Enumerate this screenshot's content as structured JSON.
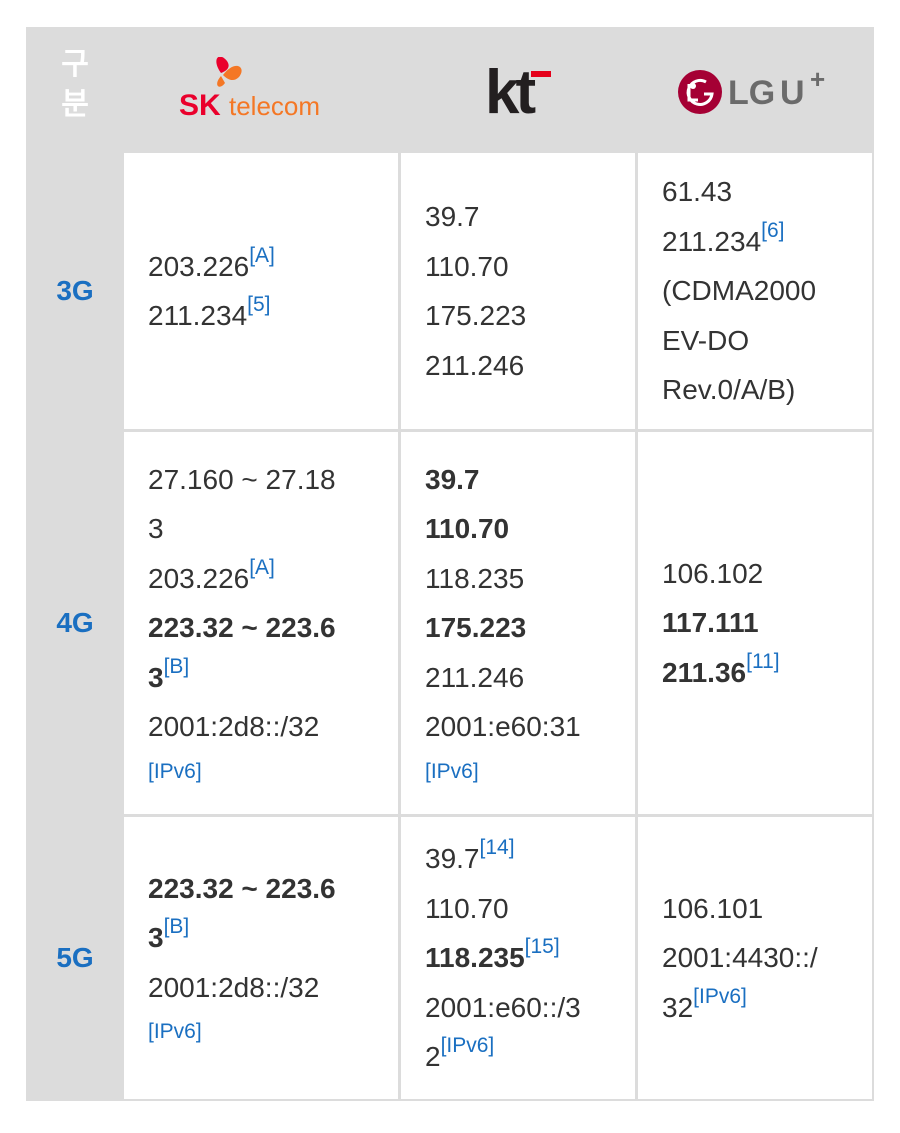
{
  "header": {
    "gubun": "구분",
    "gubun_chars": [
      "구",
      "분"
    ],
    "carriers": [
      {
        "name": "SK telecom",
        "sk": "SK",
        "rest": "telecom",
        "color": "#ea002c",
        "accent": "#f47725"
      },
      {
        "name": "kt",
        "text": "kt",
        "color": "#231f20",
        "accent": "#e5001a"
      },
      {
        "name": "LG U+",
        "lg": "LG",
        "u": "U",
        "plus": "+",
        "color": "#a50034",
        "text_color": "#6b6b6b"
      }
    ]
  },
  "rows": [
    {
      "label": "3G",
      "skt": [
        {
          "text": "203.226",
          "ref": "[A]"
        },
        {
          "text": "211.234",
          "ref": "[5]"
        }
      ],
      "kt": [
        {
          "text": "39.7"
        },
        {
          "text": "110.70"
        },
        {
          "text": "175.223"
        },
        {
          "text": "211.246"
        }
      ],
      "lgu": [
        {
          "text": "61.43"
        },
        {
          "text": "211.234",
          "ref": "[6]"
        },
        {
          "text": "(CDMA2000"
        },
        {
          "text": "EV-DO"
        },
        {
          "text": "Rev.0/A/B)"
        }
      ]
    },
    {
      "label": "4G",
      "skt": [
        {
          "text": "27.160 ~ 27.18"
        },
        {
          "text": "3"
        },
        {
          "text": "203.226",
          "ref": "[A]"
        },
        {
          "text": "223.32 ~ 223.6",
          "bold": true
        },
        {
          "text": "3",
          "bold": true,
          "ref": "[B]"
        },
        {
          "text": "2001:2d8::/32"
        },
        {
          "refline": "[IPv6]"
        }
      ],
      "kt": [
        {
          "text": "39.7",
          "bold": true
        },
        {
          "text": "110.70",
          "bold": true
        },
        {
          "text": "118.235"
        },
        {
          "text": "175.223",
          "bold": true
        },
        {
          "text": "211.246"
        },
        {
          "text": "2001:e60:31"
        },
        {
          "refline": "[IPv6]"
        }
      ],
      "lgu": [
        {
          "text": "106.102"
        },
        {
          "text": "117.111",
          "bold": true
        },
        {
          "text": "211.36",
          "bold": true,
          "ref": "[11]"
        }
      ]
    },
    {
      "label": "5G",
      "skt": [
        {
          "text": "223.32 ~ 223.6",
          "bold": true
        },
        {
          "text": "3",
          "bold": true,
          "ref": "[B]"
        },
        {
          "text": "2001:2d8::/32"
        },
        {
          "refline": "[IPv6]"
        }
      ],
      "kt": [
        {
          "text": "39.7",
          "ref": "[14]"
        },
        {
          "text": "110.70"
        },
        {
          "text": "118.235",
          "bold": true,
          "ref": "[15]"
        },
        {
          "text": "2001:e60::/3"
        },
        {
          "text": "2",
          "ref": "[IPv6]"
        }
      ],
      "lgu": [
        {
          "text": "106.101"
        },
        {
          "text": "2001:4430::/"
        },
        {
          "text": "32",
          "ref": "[IPv6]"
        }
      ]
    }
  ]
}
